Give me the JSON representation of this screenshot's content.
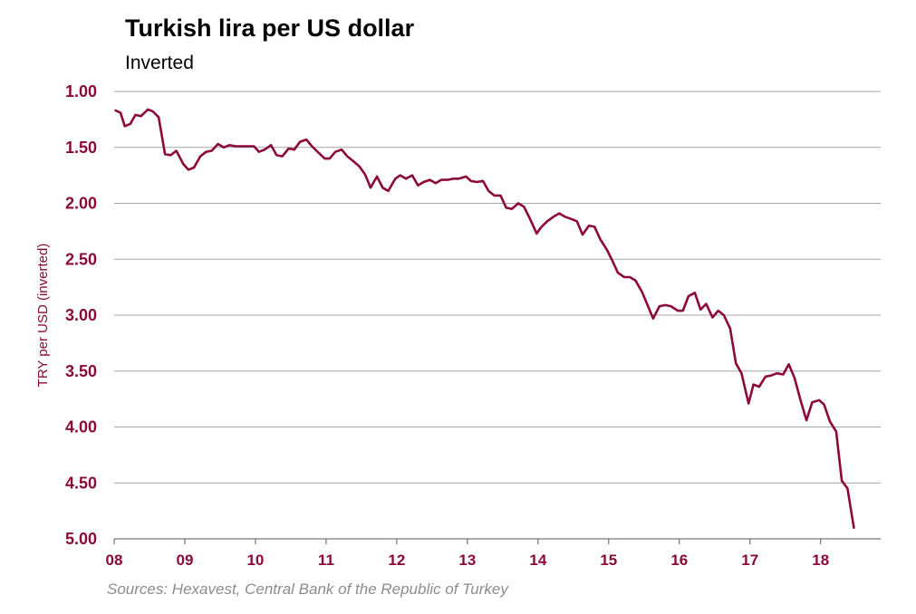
{
  "colors": {
    "series": "#8b0a3a",
    "text": "#000000",
    "source": "#8c8c8c"
  },
  "chart_data": {
    "type": "line",
    "title": "Turkish lira per US dollar",
    "subtitle": "Inverted",
    "ylabel": "TRY per USD (inverted)",
    "xlabel": "",
    "source": "Sources: Hexavest, Central Bank of the Republic of Turkey",
    "y_inverted": true,
    "ylim": [
      1.0,
      5.0
    ],
    "xlim": [
      2008,
      2018.85
    ],
    "y_ticks": [
      "1.00",
      "1.50",
      "2.00",
      "2.50",
      "3.00",
      "3.50",
      "4.00",
      "4.50",
      "5.00"
    ],
    "x_ticks": [
      {
        "x": 2008,
        "label": "08"
      },
      {
        "x": 2009,
        "label": "09"
      },
      {
        "x": 2010,
        "label": "10"
      },
      {
        "x": 2011,
        "label": "11"
      },
      {
        "x": 2012,
        "label": "12"
      },
      {
        "x": 2013,
        "label": "13"
      },
      {
        "x": 2014,
        "label": "14"
      },
      {
        "x": 2015,
        "label": "15"
      },
      {
        "x": 2016,
        "label": "16"
      },
      {
        "x": 2017,
        "label": "17"
      },
      {
        "x": 2018,
        "label": "18"
      }
    ],
    "grid": true,
    "legend": "none",
    "series": [
      {
        "points": [
          [
            2008.02,
            1.17
          ],
          [
            2008.09,
            1.19
          ],
          [
            2008.15,
            1.31
          ],
          [
            2008.23,
            1.29
          ],
          [
            2008.3,
            1.21
          ],
          [
            2008.38,
            1.22
          ],
          [
            2008.48,
            1.16
          ],
          [
            2008.55,
            1.18
          ],
          [
            2008.63,
            1.23
          ],
          [
            2008.72,
            1.56
          ],
          [
            2008.8,
            1.57
          ],
          [
            2008.88,
            1.53
          ],
          [
            2008.98,
            1.65
          ],
          [
            2009.05,
            1.7
          ],
          [
            2009.13,
            1.68
          ],
          [
            2009.22,
            1.58
          ],
          [
            2009.3,
            1.54
          ],
          [
            2009.38,
            1.53
          ],
          [
            2009.47,
            1.47
          ],
          [
            2009.55,
            1.5
          ],
          [
            2009.63,
            1.48
          ],
          [
            2009.72,
            1.49
          ],
          [
            2009.8,
            1.49
          ],
          [
            2009.88,
            1.49
          ],
          [
            2009.98,
            1.49
          ],
          [
            2010.05,
            1.54
          ],
          [
            2010.13,
            1.52
          ],
          [
            2010.22,
            1.48
          ],
          [
            2010.3,
            1.57
          ],
          [
            2010.38,
            1.58
          ],
          [
            2010.47,
            1.51
          ],
          [
            2010.55,
            1.52
          ],
          [
            2010.63,
            1.45
          ],
          [
            2010.72,
            1.43
          ],
          [
            2010.8,
            1.49
          ],
          [
            2010.88,
            1.54
          ],
          [
            2010.98,
            1.6
          ],
          [
            2011.05,
            1.6
          ],
          [
            2011.13,
            1.54
          ],
          [
            2011.22,
            1.52
          ],
          [
            2011.3,
            1.58
          ],
          [
            2011.38,
            1.62
          ],
          [
            2011.47,
            1.67
          ],
          [
            2011.55,
            1.74
          ],
          [
            2011.63,
            1.86
          ],
          [
            2011.72,
            1.76
          ],
          [
            2011.8,
            1.86
          ],
          [
            2011.88,
            1.89
          ],
          [
            2011.98,
            1.78
          ],
          [
            2012.05,
            1.75
          ],
          [
            2012.13,
            1.78
          ],
          [
            2012.22,
            1.75
          ],
          [
            2012.3,
            1.84
          ],
          [
            2012.38,
            1.81
          ],
          [
            2012.47,
            1.79
          ],
          [
            2012.55,
            1.82
          ],
          [
            2012.63,
            1.79
          ],
          [
            2012.72,
            1.79
          ],
          [
            2012.8,
            1.78
          ],
          [
            2012.88,
            1.78
          ],
          [
            2012.98,
            1.76
          ],
          [
            2013.05,
            1.8
          ],
          [
            2013.13,
            1.81
          ],
          [
            2013.22,
            1.8
          ],
          [
            2013.3,
            1.89
          ],
          [
            2013.38,
            1.93
          ],
          [
            2013.47,
            1.93
          ],
          [
            2013.55,
            2.04
          ],
          [
            2013.63,
            2.05
          ],
          [
            2013.72,
            2.0
          ],
          [
            2013.8,
            2.03
          ],
          [
            2013.88,
            2.13
          ],
          [
            2013.98,
            2.27
          ],
          [
            2014.05,
            2.21
          ],
          [
            2014.13,
            2.16
          ],
          [
            2014.22,
            2.12
          ],
          [
            2014.3,
            2.09
          ],
          [
            2014.38,
            2.12
          ],
          [
            2014.47,
            2.14
          ],
          [
            2014.55,
            2.16
          ],
          [
            2014.63,
            2.28
          ],
          [
            2014.72,
            2.2
          ],
          [
            2014.8,
            2.21
          ],
          [
            2014.88,
            2.32
          ],
          [
            2014.98,
            2.42
          ],
          [
            2015.05,
            2.51
          ],
          [
            2015.13,
            2.62
          ],
          [
            2015.22,
            2.66
          ],
          [
            2015.3,
            2.66
          ],
          [
            2015.38,
            2.69
          ],
          [
            2015.47,
            2.79
          ],
          [
            2015.55,
            2.91
          ],
          [
            2015.63,
            3.03
          ],
          [
            2015.72,
            2.92
          ],
          [
            2015.8,
            2.91
          ],
          [
            2015.88,
            2.92
          ],
          [
            2015.98,
            2.96
          ],
          [
            2016.05,
            2.96
          ],
          [
            2016.13,
            2.83
          ],
          [
            2016.22,
            2.8
          ],
          [
            2016.3,
            2.95
          ],
          [
            2016.38,
            2.9
          ],
          [
            2016.47,
            3.02
          ],
          [
            2016.55,
            2.96
          ],
          [
            2016.63,
            3.0
          ],
          [
            2016.72,
            3.12
          ],
          [
            2016.8,
            3.43
          ],
          [
            2016.88,
            3.52
          ],
          [
            2016.98,
            3.79
          ],
          [
            2017.05,
            3.62
          ],
          [
            2017.13,
            3.64
          ],
          [
            2017.22,
            3.55
          ],
          [
            2017.3,
            3.54
          ],
          [
            2017.38,
            3.52
          ],
          [
            2017.47,
            3.53
          ],
          [
            2017.55,
            3.44
          ],
          [
            2017.63,
            3.56
          ],
          [
            2017.72,
            3.77
          ],
          [
            2017.8,
            3.94
          ],
          [
            2017.88,
            3.78
          ],
          [
            2017.98,
            3.76
          ],
          [
            2018.05,
            3.8
          ],
          [
            2018.13,
            3.95
          ],
          [
            2018.22,
            4.04
          ],
          [
            2018.3,
            4.48
          ],
          [
            2018.38,
            4.55
          ],
          [
            2018.47,
            4.9
          ]
        ]
      }
    ]
  }
}
